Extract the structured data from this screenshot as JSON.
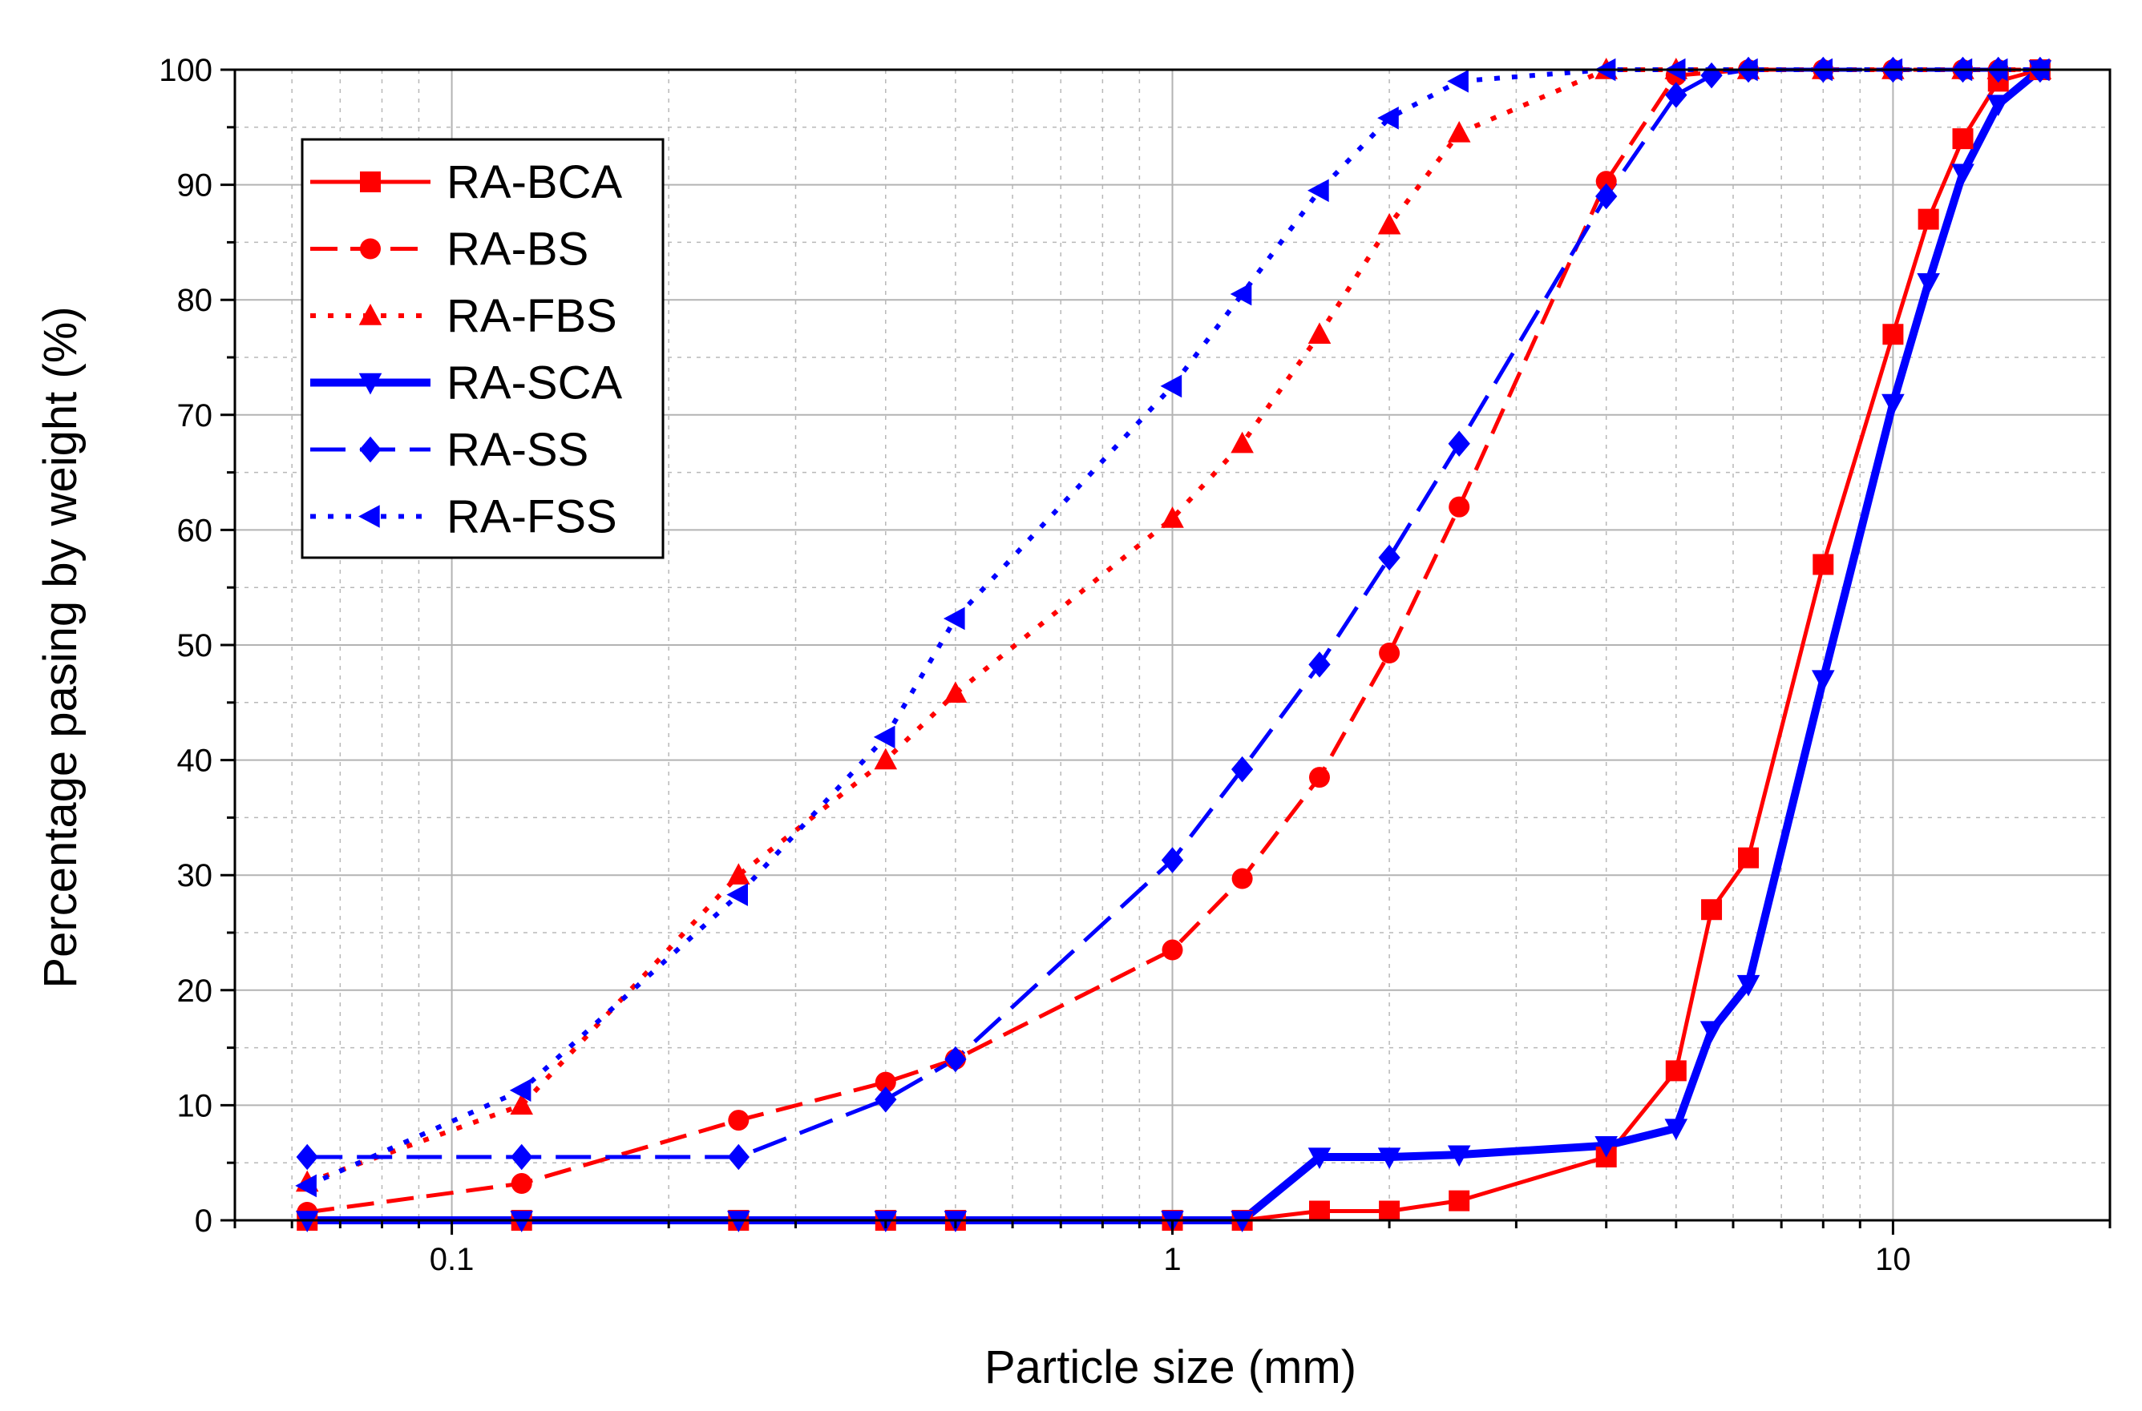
{
  "chart_data": {
    "type": "line",
    "title": "",
    "xlabel": "Particle size (mm)",
    "ylabel": "Percentage pasing by weight (%)",
    "x_scale": "log",
    "xlim": [
      0.05,
      20
    ],
    "ylim": [
      0,
      100
    ],
    "x_ticks": [
      0.1,
      1,
      10
    ],
    "x_tick_labels": [
      "0.1",
      "1",
      "10"
    ],
    "y_ticks": [
      0,
      10,
      20,
      30,
      40,
      50,
      60,
      70,
      80,
      90,
      100
    ],
    "y_tick_labels": [
      "0",
      "10",
      "20",
      "30",
      "40",
      "50",
      "60",
      "70",
      "80",
      "90",
      "100"
    ],
    "grid": true,
    "legend_position": "top-left",
    "series": [
      {
        "name": "RA-BCA",
        "color": "#ff0000",
        "line": "solid",
        "marker": "square",
        "x": [
          0.063,
          0.125,
          0.25,
          0.4,
          0.5,
          1,
          1.25,
          1.6,
          2,
          2.5,
          4,
          5,
          5.6,
          6.3,
          8,
          10,
          11.2,
          12.5,
          14,
          16
        ],
        "y": [
          0,
          0,
          0,
          0,
          0,
          0,
          0,
          0.8,
          0.8,
          1.7,
          5.5,
          13,
          27,
          31.5,
          57,
          77,
          87,
          94,
          99,
          100
        ]
      },
      {
        "name": "RA-BS",
        "color": "#ff0000",
        "line": "dash",
        "marker": "circle",
        "x": [
          0.063,
          0.125,
          0.25,
          0.4,
          0.5,
          1,
          1.25,
          1.6,
          2,
          2.5,
          4,
          5,
          6.3,
          8,
          10,
          12.5,
          14,
          16
        ],
        "y": [
          0.7,
          3.2,
          8.7,
          12,
          14,
          23.5,
          29.7,
          38.5,
          49.3,
          62,
          90.3,
          99.5,
          100,
          100,
          100,
          100,
          100,
          100
        ]
      },
      {
        "name": "RA-FBS",
        "color": "#ff0000",
        "line": "dot",
        "marker": "triangle-up",
        "x": [
          0.063,
          0.125,
          0.25,
          0.4,
          0.5,
          1,
          1.25,
          1.6,
          2,
          2.5,
          4,
          5,
          6.3,
          8,
          10,
          12.5,
          14,
          16
        ],
        "y": [
          3.3,
          10,
          30,
          40,
          45.8,
          61,
          67.5,
          77,
          86.5,
          94.5,
          100,
          100,
          100,
          100,
          100,
          100,
          100,
          100
        ]
      },
      {
        "name": "RA-SCA",
        "color": "#0000ff",
        "line": "solid-thick",
        "marker": "triangle-down",
        "x": [
          0.063,
          0.125,
          0.25,
          0.4,
          0.5,
          1,
          1.25,
          1.6,
          2,
          2.5,
          4,
          5,
          5.6,
          6.3,
          8,
          10,
          11.2,
          12.5,
          14,
          16
        ],
        "y": [
          0,
          0,
          0,
          0,
          0,
          0,
          0,
          5.5,
          5.5,
          5.7,
          6.5,
          8,
          16.5,
          20.5,
          47,
          71,
          81.5,
          91,
          97,
          100
        ]
      },
      {
        "name": "RA-SS",
        "color": "#0000ff",
        "line": "longdash",
        "marker": "diamond",
        "x": [
          0.063,
          0.125,
          0.25,
          0.4,
          0.5,
          1,
          1.25,
          1.6,
          2,
          2.5,
          4,
          5,
          5.6,
          6.3,
          8,
          10,
          12.5,
          14,
          16
        ],
        "y": [
          5.5,
          5.5,
          5.5,
          10.5,
          14,
          31.3,
          39.2,
          48.3,
          57.6,
          67.5,
          89,
          97.8,
          99.5,
          100,
          100,
          100,
          100,
          100,
          100
        ]
      },
      {
        "name": "RA-FSS",
        "color": "#0000ff",
        "line": "dot",
        "marker": "triangle-left",
        "x": [
          0.063,
          0.125,
          0.25,
          0.4,
          0.5,
          1,
          1.25,
          1.6,
          2,
          2.5,
          4,
          5,
          6.3,
          8,
          10,
          12.5,
          14,
          16
        ],
        "y": [
          3,
          11.3,
          28.3,
          42,
          52.3,
          72.5,
          80.5,
          89.5,
          95.8,
          99,
          100,
          100,
          100,
          100,
          100,
          100,
          100,
          100
        ]
      }
    ]
  }
}
